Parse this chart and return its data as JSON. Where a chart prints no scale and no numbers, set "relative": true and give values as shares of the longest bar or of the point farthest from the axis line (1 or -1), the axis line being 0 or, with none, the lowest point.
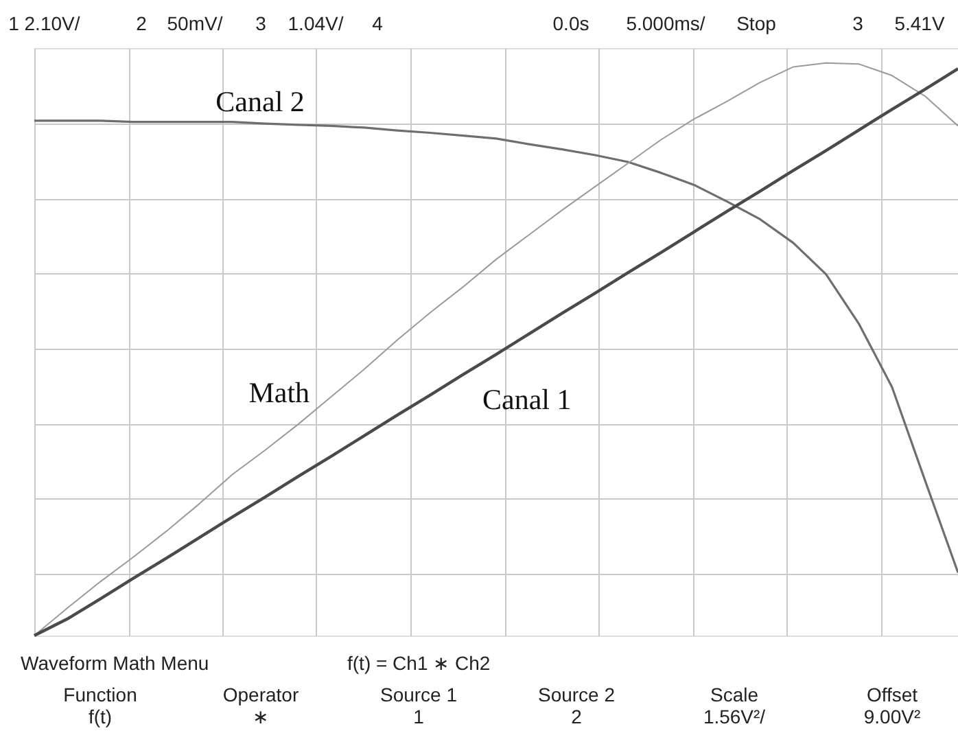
{
  "chart_data": {
    "type": "line",
    "relative": true,
    "grid": true,
    "categories": [
      null,
      null,
      null,
      null,
      null,
      null,
      null,
      null,
      null,
      null,
      null,
      null,
      null,
      null,
      null,
      null,
      null,
      null,
      null,
      null,
      null,
      null,
      null,
      null,
      null,
      null,
      null,
      null,
      null
    ],
    "series": [
      {
        "name": "Canal 2",
        "color": "#6e6e6e",
        "values": [
          0.899,
          0.899,
          0.899,
          0.897,
          0.897,
          0.897,
          0.897,
          0.894,
          0.892,
          0.89,
          0.887,
          0.882,
          0.878,
          0.873,
          0.868,
          0.858,
          0.849,
          0.839,
          0.827,
          0.808,
          0.787,
          0.758,
          0.727,
          0.686,
          0.631,
          0.544,
          0.434,
          0.271,
          0.11
        ]
      },
      {
        "name": "Math",
        "color": "#9a9a9a",
        "values": [
          0.0,
          0.048,
          0.094,
          0.137,
          0.182,
          0.23,
          0.281,
          0.324,
          0.369,
          0.417,
          0.465,
          0.516,
          0.564,
          0.609,
          0.657,
          0.7,
          0.743,
          0.784,
          0.825,
          0.866,
          0.902,
          0.933,
          0.966,
          0.993,
          1.0,
          0.998,
          0.978,
          0.942,
          0.89
        ]
      },
      {
        "name": "Canal 1",
        "color": "#4a4a4a",
        "values": [
          0.0,
          0.029,
          0.064,
          0.1,
          0.135,
          0.171,
          0.207,
          0.242,
          0.278,
          0.313,
          0.349,
          0.385,
          0.42,
          0.456,
          0.491,
          0.527,
          0.563,
          0.598,
          0.634,
          0.669,
          0.705,
          0.741,
          0.776,
          0.812,
          0.847,
          0.883,
          0.919,
          0.954,
          0.99
        ]
      }
    ],
    "annotations": [
      "1",
      "2.10V/",
      "2",
      "50mV/",
      "3",
      "1.04V/",
      "4",
      "0.0s",
      "5.000ms/",
      "Stop",
      "3",
      "5.41V",
      "Waveform Math Menu",
      "f(t) = Ch1 ∗ Ch2",
      "Function",
      "f(t)",
      "Operator",
      "∗",
      "Source 1",
      "1",
      "Source 2",
      "2",
      "Scale",
      "1.56V²/",
      "Offset",
      "9.00V²"
    ]
  }
}
